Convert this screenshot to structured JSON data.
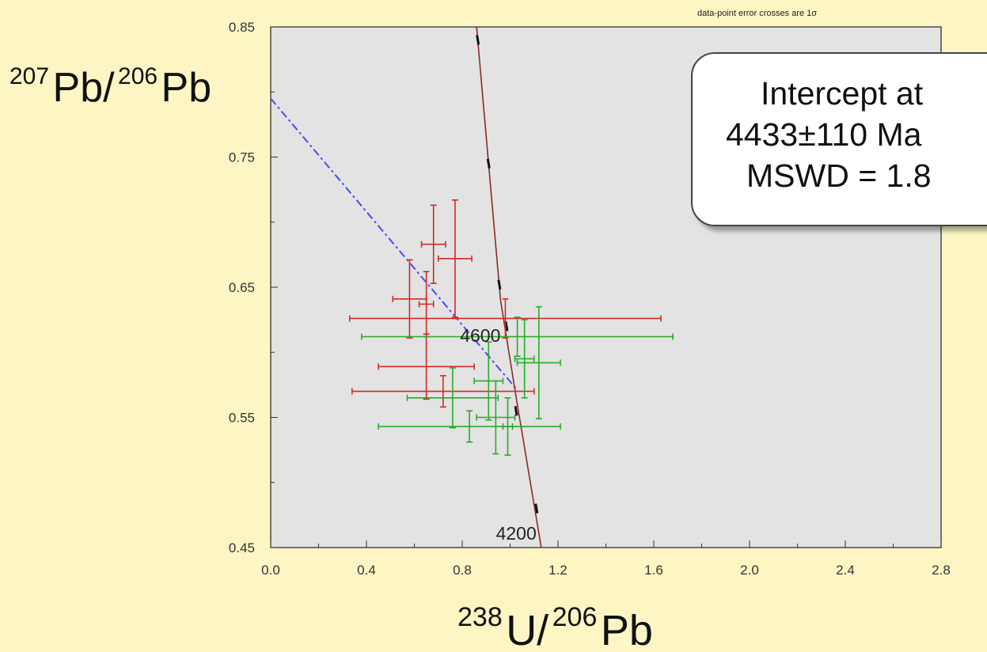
{
  "chart_data": {
    "type": "scatter",
    "note": "data-point error crosses are 1σ",
    "xlabel": {
      "sup1": "238",
      "base1": "U/",
      "sup2": "206",
      "base2": "Pb"
    },
    "ylabel": {
      "sup1": "207",
      "base1": "Pb/",
      "sup2": "206",
      "base2": "Pb"
    },
    "xlim": [
      0.0,
      2.8
    ],
    "ylim": [
      0.45,
      0.85
    ],
    "x_ticks": [
      "0.0",
      "0.4",
      "0.8",
      "1.2",
      "1.6",
      "2.0",
      "2.4",
      "2.8"
    ],
    "y_ticks": [
      "0.45",
      "0.55",
      "0.65",
      "0.75",
      "0.85"
    ],
    "grid": false,
    "callout": [
      "Intercept at",
      "4433±110 Ma",
      "MSWD = 1.8"
    ],
    "concordia_labels": [
      {
        "text": "4600",
        "x": 0.96,
        "y": 0.608
      },
      {
        "text": "4200",
        "x": 1.11,
        "y": 0.456
      }
    ],
    "concordia": {
      "points": [
        [
          0.86,
          0.85
        ],
        [
          0.96,
          0.64
        ],
        [
          1.03,
          0.56
        ],
        [
          1.13,
          0.45
        ]
      ]
    },
    "regression_line": {
      "x1": 0.0,
      "y1": 0.795,
      "x2": 1.03,
      "y2": 0.571
    },
    "series": [
      {
        "color": "#d12a2a",
        "points": [
          {
            "x": 0.68,
            "y": 0.683,
            "xerr": 0.05,
            "yerr": 0.03
          },
          {
            "x": 0.77,
            "y": 0.672,
            "xerr": 0.07,
            "yerr": 0.045
          },
          {
            "x": 0.58,
            "y": 0.641,
            "xerr": 0.07,
            "yerr": 0.03
          },
          {
            "x": 0.65,
            "y": 0.637,
            "xerr": 0.03,
            "yerr": 0.025
          },
          {
            "x": 0.98,
            "y": 0.626,
            "xerr": 0.65,
            "yerr": 0.015
          },
          {
            "x": 0.65,
            "y": 0.589,
            "xerr": 0.2,
            "yerr": 0.025
          },
          {
            "x": 0.72,
            "y": 0.57,
            "xerr": 0.38,
            "yerr": 0.012
          }
        ]
      },
      {
        "color": "#2aaa2a",
        "points": [
          {
            "x": 1.03,
            "y": 0.612,
            "xerr": 0.65,
            "yerr": 0.015
          },
          {
            "x": 1.12,
            "y": 0.592,
            "xerr": 0.09,
            "yerr": 0.043
          },
          {
            "x": 1.06,
            "y": 0.595,
            "xerr": 0.04,
            "yerr": 0.03
          },
          {
            "x": 0.91,
            "y": 0.578,
            "xerr": 0.06,
            "yerr": 0.03
          },
          {
            "x": 0.76,
            "y": 0.565,
            "xerr": 0.19,
            "yerr": 0.023
          },
          {
            "x": 0.94,
            "y": 0.55,
            "xerr": 0.08,
            "yerr": 0.028
          },
          {
            "x": 0.83,
            "y": 0.543,
            "xerr": 0.38,
            "yerr": 0.012
          },
          {
            "x": 0.99,
            "y": 0.543,
            "xerr": 0.02,
            "yerr": 0.022
          }
        ]
      }
    ]
  }
}
